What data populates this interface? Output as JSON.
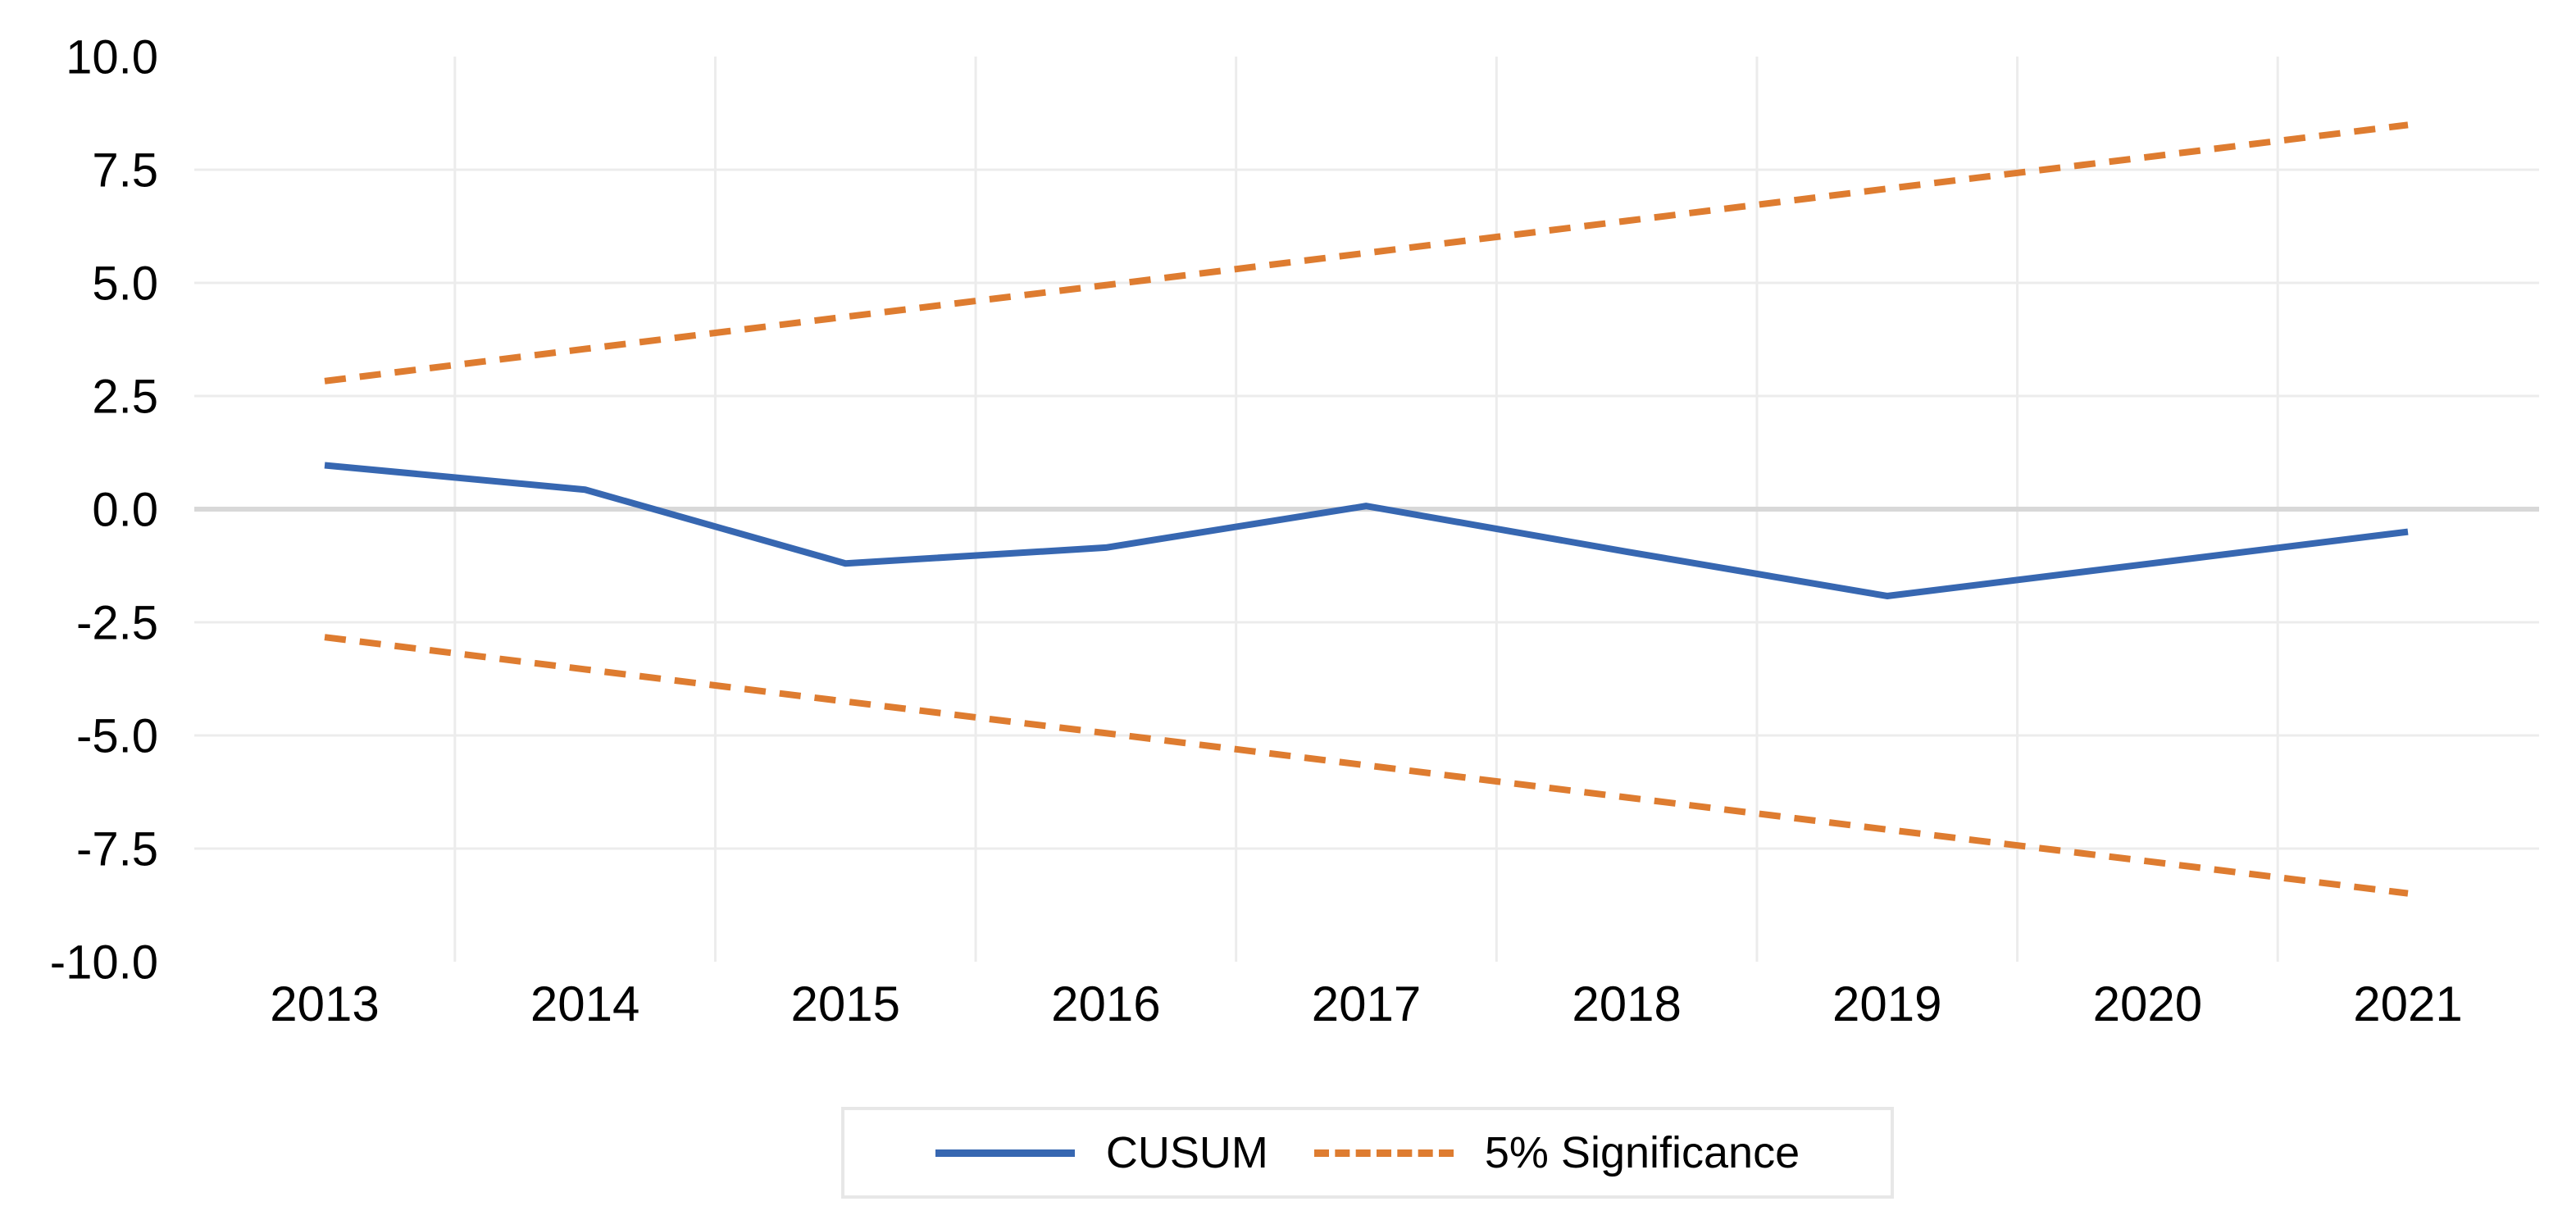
{
  "chart_data": {
    "type": "line",
    "title": "",
    "xlabel": "",
    "ylabel": "",
    "x_categories": [
      "2013",
      "2014",
      "2015",
      "2016",
      "2017",
      "2018",
      "2019",
      "2020",
      "2021"
    ],
    "series": [
      {
        "name": "CUSUM",
        "color": "#3767B1",
        "style": "solid",
        "values": [
          0.97,
          0.43,
          -1.2,
          -0.85,
          0.07,
          -0.94,
          -1.92,
          -1.21,
          -0.5
        ]
      },
      {
        "name": "5% Significance (upper bound)",
        "color": "#DE7C30",
        "style": "dashed",
        "values": [
          2.83,
          3.54,
          4.25,
          4.95,
          5.66,
          6.37,
          7.08,
          7.78,
          8.49
        ]
      },
      {
        "name": "5% Significance (lower bound)",
        "color": "#DE7C30",
        "style": "dashed",
        "values": [
          -2.83,
          -3.54,
          -4.25,
          -4.95,
          -5.66,
          -6.37,
          -7.08,
          -7.78,
          -8.49
        ]
      }
    ],
    "ylim": [
      -10.0,
      10.0
    ],
    "ytick_values": [
      10.0,
      7.5,
      5.0,
      2.5,
      0.0,
      -2.5,
      -5.0,
      -7.5,
      -10.0
    ],
    "ytick_labels": [
      "10.0",
      "7.5",
      "5.0",
      "2.5",
      "0.0",
      "-2.5",
      "-5.0",
      "-7.5",
      "-10.0"
    ],
    "grid": {
      "horizontal": true,
      "vertical": true,
      "gridline_color": "#ececec",
      "zero_line_color": "#d8d8d8"
    },
    "legend": {
      "position": "bottom",
      "entries": [
        "CUSUM",
        "5% Significance"
      ]
    }
  }
}
